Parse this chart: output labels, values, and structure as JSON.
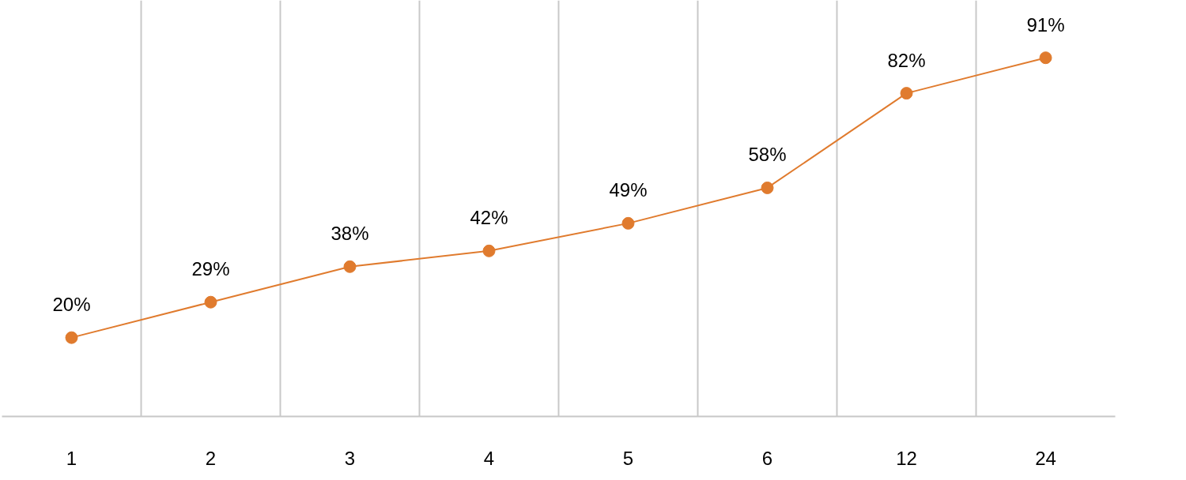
{
  "chart_data": {
    "type": "line",
    "categories": [
      "1",
      "2",
      "3",
      "4",
      "5",
      "6",
      "12",
      "24"
    ],
    "series": [
      {
        "color": "#e07b2e",
        "values": [
          20,
          29,
          38,
          42,
          49,
          58,
          82,
          91
        ],
        "value_labels": [
          "20%",
          "29%",
          "38%",
          "42%",
          "49%",
          "58%",
          "82%",
          "91%"
        ]
      }
    ],
    "grid": "x",
    "marker": "circle",
    "line_style": "solid",
    "tick_labels": "x"
  }
}
